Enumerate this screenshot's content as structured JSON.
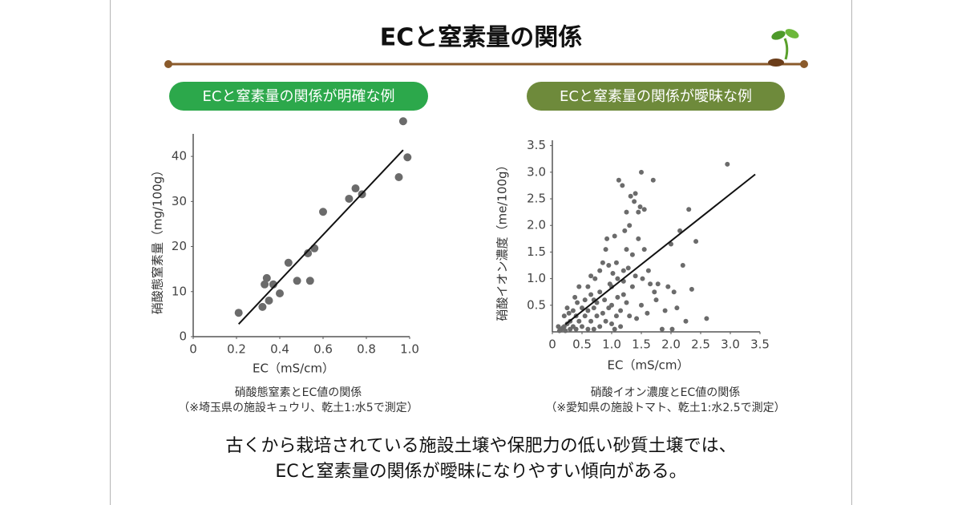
{
  "slide": {
    "title": "ECと窒素量の関係",
    "conclusion": [
      "古くから栽培されている施設土壌や保肥力の低い砂質土壌では、",
      "ECと窒素量の関係が曖昧になりやすい傾向がある。"
    ]
  },
  "chart_data": [
    {
      "type": "scatter",
      "title": "ECと窒素量の関係が明確な例",
      "badge_color": "#2ca84b",
      "color": "#6b6b6b",
      "x_label": "EC（mS/cm）",
      "y_label": "硝酸態窒素量（mg/100g）",
      "caption": [
        "硝酸態窒素とEC値の関係",
        "（※埼玉県の施設キュウリ、乾土1:水5で測定）"
      ],
      "xlim": [
        0,
        1
      ],
      "ylim": [
        0,
        45
      ],
      "xticks": [
        0,
        0.2,
        0.4,
        0.6,
        0.8,
        {
          "value": 1,
          "label": "1.0"
        }
      ],
      "yticks": [
        0,
        10,
        20,
        30,
        40
      ],
      "x": [
        0.21,
        0.32,
        0.34,
        0.33,
        0.35,
        0.37,
        0.4,
        0.44,
        0.48,
        0.53,
        0.54,
        0.56,
        0.6,
        0.72,
        0.75,
        0.78,
        0.95,
        0.97,
        0.99
      ],
      "values": [
        5.3,
        6.6,
        13,
        11.6,
        8,
        11.6,
        9.6,
        16.4,
        12.4,
        18.5,
        12.4,
        19.6,
        27.7,
        30.6,
        32.9,
        31.6,
        35.4,
        47.8,
        39.8
      ],
      "trendline": {
        "x": [
          0.21,
          0.97
        ],
        "values": [
          2.8,
          41.4
        ]
      }
    },
    {
      "type": "scatter",
      "title": "ECと窒素量の関係が曖昧な例",
      "badge_color": "#6e8a3b",
      "color": "#6b6b6b",
      "x_label": "EC（mS/cm）",
      "y_label": "硝酸イオン濃度（me/100g）",
      "caption": [
        "硝酸イオン濃度とEC値の関係",
        "（※愛知県の施設トマト、乾土1:水2.5で測定）"
      ],
      "xlim": [
        0,
        3.5
      ],
      "ylim": [
        0,
        3.6
      ],
      "xticks": [
        0,
        0.5,
        {
          "value": 1,
          "label": "1.0"
        },
        1.5,
        {
          "value": 2,
          "label": "2.0"
        },
        2.5,
        {
          "value": 3,
          "label": "3.0"
        },
        3.5
      ],
      "yticks": [
        0.5,
        {
          "value": 1,
          "label": "1.0"
        },
        1.5,
        {
          "value": 2,
          "label": "2.0"
        },
        2.5,
        {
          "value": 3,
          "label": "3.0"
        },
        3.5
      ],
      "x": [
        0.15,
        0.2,
        0.22,
        0.25,
        0.18,
        0.3,
        0.3,
        0.28,
        0.35,
        0.4,
        0.4,
        0.42,
        0.45,
        0.45,
        0.5,
        0.5,
        0.55,
        0.55,
        0.6,
        0.6,
        0.65,
        0.65,
        0.7,
        0.7,
        0.72,
        0.75,
        0.75,
        0.8,
        0.8,
        0.85,
        0.85,
        0.88,
        0.9,
        0.9,
        0.92,
        0.95,
        0.95,
        0.97,
        1.0,
        1.0,
        1.0,
        1.02,
        1.05,
        1.05,
        1.08,
        1.1,
        1.1,
        1.12,
        1.15,
        1.15,
        1.18,
        1.2,
        1.2,
        1.22,
        1.25,
        1.25,
        1.28,
        1.3,
        1.3,
        1.32,
        1.35,
        1.35,
        1.38,
        1.4,
        1.4,
        1.42,
        1.45,
        1.45,
        1.48,
        1.5,
        1.5,
        1.52,
        1.55,
        1.55,
        1.6,
        1.62,
        1.65,
        1.7,
        1.72,
        1.75,
        1.78,
        1.85,
        1.9,
        1.95,
        2.0,
        2.02,
        2.05,
        2.1,
        2.15,
        2.2,
        2.25,
        2.3,
        2.35,
        2.42,
        2.6,
        2.95,
        0.1,
        0.12,
        0.2,
        0.25,
        0.35,
        0.38,
        0.6,
        0.7,
        0.65,
        0.8,
        1.08,
        1.2,
        1.25
      ],
      "values": [
        0.05,
        0.1,
        0.02,
        0.15,
        0.08,
        0.05,
        0.2,
        0.35,
        0.1,
        0.05,
        0.3,
        0.55,
        0.85,
        0.2,
        0.45,
        0.1,
        0.3,
        0.6,
        0.05,
        0.4,
        0.2,
        0.7,
        0.05,
        0.45,
        1.0,
        0.3,
        0.55,
        0.1,
        0.75,
        0.35,
        1.3,
        0.6,
        0.2,
        1.55,
        1.75,
        0.45,
        1.25,
        0.9,
        0.15,
        0.5,
        0.85,
        1.1,
        0.05,
        1.8,
        1.3,
        0.65,
        1.0,
        2.85,
        0.1,
        0.4,
        2.75,
        0.7,
        1.15,
        1.9,
        2.25,
        0.55,
        1.2,
        0.3,
        2.0,
        2.55,
        1.45,
        0.85,
        2.45,
        2.6,
        1.05,
        0.25,
        1.75,
        2.25,
        2.35,
        0.5,
        3.0,
        1.0,
        1.55,
        2.3,
        0.35,
        1.15,
        0.9,
        2.85,
        0.75,
        0.6,
        0.9,
        0.05,
        0.4,
        0.85,
        1.65,
        0.05,
        0.75,
        0.45,
        1.9,
        1.25,
        0.2,
        2.3,
        0.8,
        1.7,
        0.25,
        3.15,
        0.1,
        0.02,
        0.3,
        0.45,
        0.4,
        0.65,
        0.85,
        0.6,
        1.05,
        1.15,
        0.3,
        0.95,
        1.55
      ],
      "trendline": {
        "x": [
          0.22,
          3.42
        ],
        "values": [
          0.14,
          2.96
        ]
      }
    }
  ]
}
